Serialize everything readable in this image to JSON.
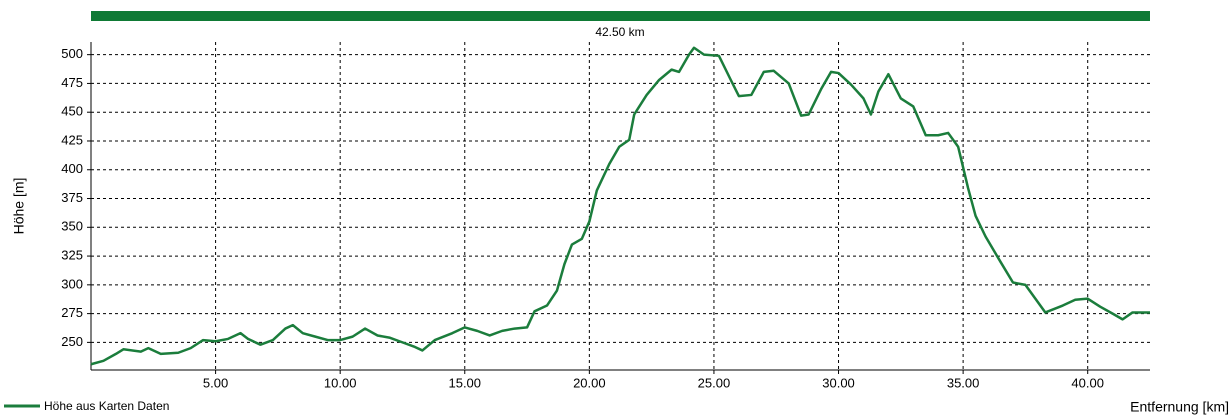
{
  "chart_data": {
    "type": "line",
    "total_distance_label": "42.50 km",
    "ylabel": "Höhe [m]",
    "xlabel": "Entfernung [km]",
    "xlim": [
      0,
      42.5
    ],
    "ylim": [
      226,
      511
    ],
    "xticks": [
      {
        "value": 5,
        "label": "5.00"
      },
      {
        "value": 10,
        "label": "10.00"
      },
      {
        "value": 15,
        "label": "15.00"
      },
      {
        "value": 20,
        "label": "20.00"
      },
      {
        "value": 25,
        "label": "25.00"
      },
      {
        "value": 30,
        "label": "30.00"
      },
      {
        "value": 35,
        "label": "35.00"
      },
      {
        "value": 40,
        "label": "40.00"
      }
    ],
    "yticks": [
      250,
      275,
      300,
      325,
      350,
      375,
      400,
      425,
      450,
      475,
      500
    ],
    "grid": true,
    "x": [
      0,
      0.5,
      1,
      1.3,
      2,
      2.3,
      2.8,
      3.5,
      4,
      4.5,
      5,
      5.5,
      6,
      6.3,
      6.8,
      7.3,
      7.8,
      8.1,
      8.5,
      9,
      9.5,
      10,
      10.5,
      11,
      11.5,
      12,
      12.5,
      13,
      13.3,
      13.8,
      14.5,
      15,
      15.5,
      16,
      16.5,
      17,
      17.5,
      17.8,
      18.3,
      18.7,
      19,
      19.3,
      19.7,
      20,
      20.3,
      20.8,
      21.2,
      21.6,
      21.8,
      22.3,
      22.8,
      23.3,
      23.6,
      24,
      24.2,
      24.6,
      25.2,
      25.7,
      26,
      26.5,
      27,
      27.4,
      28,
      28.5,
      28.8,
      29.3,
      29.7,
      30,
      30.5,
      31,
      31.3,
      31.6,
      32,
      32.5,
      33,
      33.5,
      34,
      34.4,
      34.8,
      35.2,
      35.5,
      35.9,
      36.5,
      37,
      37.5,
      38,
      38.3,
      39,
      39.5,
      40,
      40.5,
      41,
      41.4,
      41.8,
      42.5
    ],
    "series": [
      {
        "name": "Höhe aus Karten Daten",
        "color": "#1b7d3c",
        "values": [
          231,
          234,
          240,
          244,
          242,
          245,
          240,
          241,
          245,
          252,
          251,
          253,
          258,
          253,
          248,
          252,
          262,
          265,
          258,
          255,
          252,
          252,
          255,
          262,
          256,
          254,
          250,
          246,
          243,
          252,
          258,
          263,
          260,
          256,
          260,
          262,
          263,
          277,
          282,
          295,
          318,
          335,
          340,
          355,
          382,
          405,
          420,
          426,
          448,
          465,
          478,
          487,
          485,
          500,
          506,
          500,
          499,
          477,
          464,
          465,
          485,
          486,
          475,
          447,
          448,
          470,
          485,
          484,
          474,
          462,
          448,
          468,
          483,
          462,
          455,
          430,
          430,
          432,
          420,
          384,
          360,
          342,
          320,
          302,
          300,
          285,
          276,
          282,
          287,
          288,
          281,
          275,
          270,
          276,
          276
        ]
      }
    ]
  }
}
